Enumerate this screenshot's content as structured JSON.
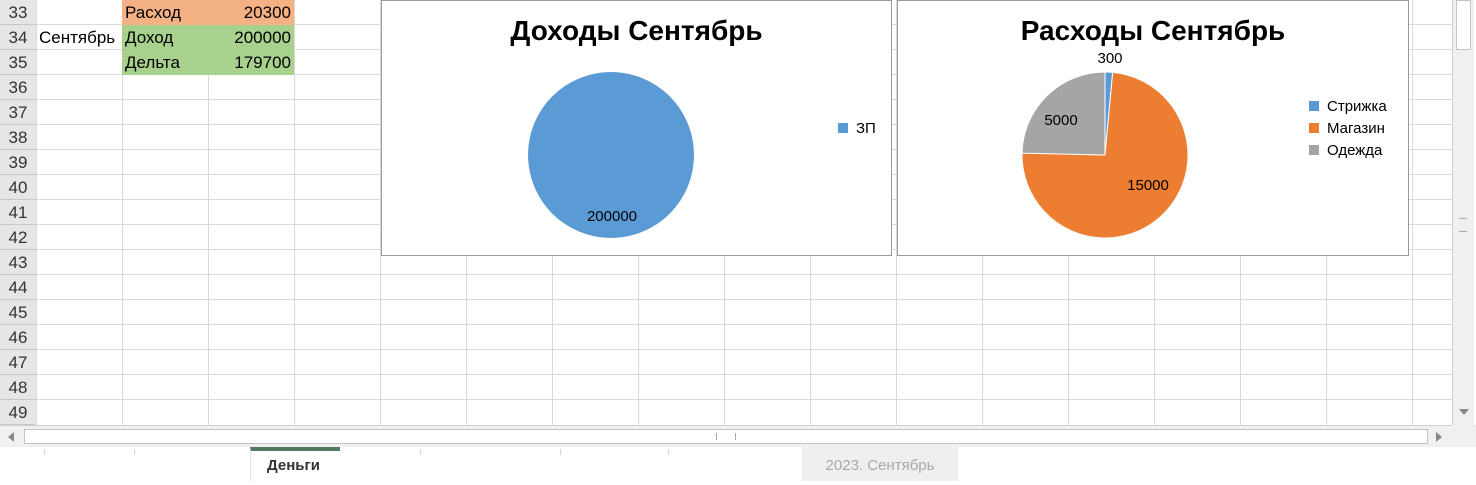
{
  "sheet": {
    "rows": [
      "33",
      "34",
      "35",
      "36",
      "37",
      "38",
      "39",
      "40",
      "41",
      "42",
      "43",
      "44",
      "45",
      "46",
      "47",
      "48",
      "49"
    ],
    "month_label": "Сентябрь",
    "summary": [
      {
        "label": "Расход",
        "value": "20300",
        "color": "#f4b183"
      },
      {
        "label": "Доход",
        "value": "200000",
        "color": "#a9d18e"
      },
      {
        "label": "Дельта",
        "value": "179700",
        "color": "#a9d18e"
      }
    ]
  },
  "charts": {
    "income": {
      "title": "Доходы Сентябрь",
      "legend": [
        {
          "name": "ЗП",
          "color": "#5b9bd5"
        }
      ]
    },
    "expense": {
      "title": "Расходы Сентябрь",
      "legend": [
        {
          "name": "Стрижка",
          "color": "#5b9bd5"
        },
        {
          "name": "Магазин",
          "color": "#ed7d31"
        },
        {
          "name": "Одежда",
          "color": "#a5a5a5"
        }
      ]
    }
  },
  "chart_data": [
    {
      "type": "pie",
      "title": "Доходы Сентябрь",
      "categories": [
        "ЗП"
      ],
      "values": [
        200000
      ],
      "data_labels": [
        "200000"
      ],
      "colors": [
        "#5b9bd5"
      ],
      "legend": "right"
    },
    {
      "type": "pie",
      "title": "Расходы Сентябрь",
      "categories": [
        "Стрижка",
        "Магазин",
        "Одежда"
      ],
      "values": [
        300,
        15000,
        5000
      ],
      "data_labels": [
        "300",
        "15000",
        "5000"
      ],
      "colors": [
        "#5b9bd5",
        "#ed7d31",
        "#a5a5a5"
      ],
      "legend": "right"
    }
  ],
  "tabs": {
    "active": "Деньги",
    "inactive": "2023. Сентябрь"
  }
}
